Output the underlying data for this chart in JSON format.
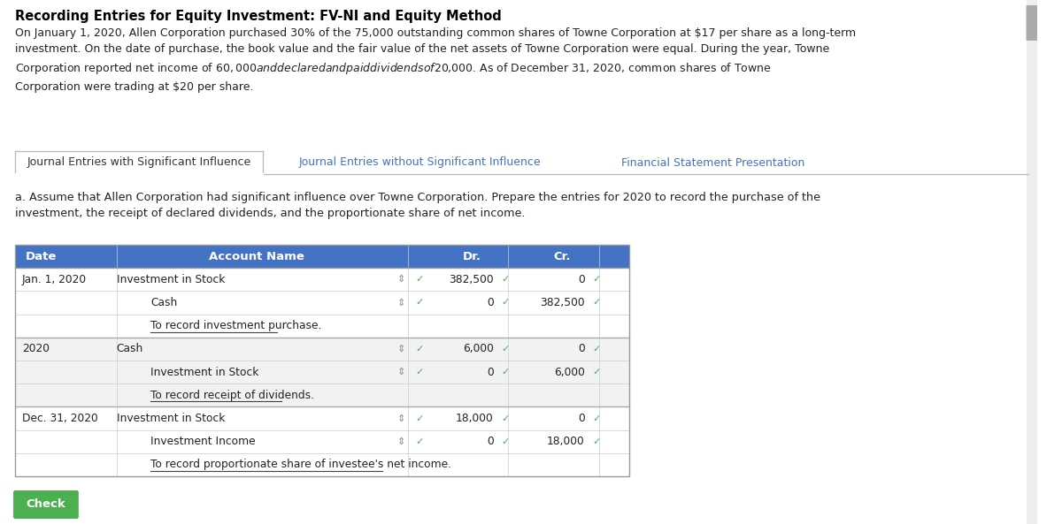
{
  "title": "Recording Entries for Equity Investment: FV-NI and Equity Method",
  "description": "On January 1, 2020, Allen Corporation purchased 30% of the 75,000 outstanding common shares of Towne Corporation at $17 per share as a long-term\ninvestment. On the date of purchase, the book value and the fair value of the net assets of Towne Corporation were equal. During the year, Towne\nCorporation reported net income of $60,000 and declared and paid dividends of $20,000. As of December 31, 2020, common shares of Towne\nCorporation were trading at $20 per share.",
  "tabs": [
    {
      "label": "Journal Entries with Significant Influence",
      "active": true
    },
    {
      "label": "Journal Entries without Significant Influence",
      "active": false
    },
    {
      "label": "Financial Statement Presentation",
      "active": false
    }
  ],
  "instruction": "a. Assume that Allen Corporation had significant influence over Towne Corporation. Prepare the entries for 2020 to record the purchase of the\ninvestment, the receipt of declared dividends, and the proportionate share of net income.",
  "table_header": [
    "Date",
    "Account Name",
    "Dr.",
    "Cr."
  ],
  "table_header_bg": "#4472c4",
  "table_header_color": "#ffffff",
  "rows": [
    {
      "date": "Jan. 1, 2020",
      "account": "Investment in Stock",
      "indent": false,
      "dr": "382,500",
      "cr": "0",
      "note": false
    },
    {
      "date": "",
      "account": "Cash",
      "indent": true,
      "dr": "0",
      "cr": "382,500",
      "note": false
    },
    {
      "date": "",
      "account": "To record investment purchase.",
      "indent": true,
      "dr": "",
      "cr": "",
      "note": true
    },
    {
      "date": "2020",
      "account": "Cash",
      "indent": false,
      "dr": "6,000",
      "cr": "0",
      "note": false
    },
    {
      "date": "",
      "account": "Investment in Stock",
      "indent": true,
      "dr": "0",
      "cr": "6,000",
      "note": false
    },
    {
      "date": "",
      "account": "To record receipt of dividends.",
      "indent": true,
      "dr": "",
      "cr": "",
      "note": true
    },
    {
      "date": "Dec. 31, 2020",
      "account": "Investment in Stock",
      "indent": false,
      "dr": "18,000",
      "cr": "0",
      "note": false
    },
    {
      "date": "",
      "account": "Investment Income",
      "indent": true,
      "dr": "0",
      "cr": "18,000",
      "note": false
    },
    {
      "date": "",
      "account": "To record proportionate share of investee's net income.",
      "indent": true,
      "dr": "",
      "cr": "",
      "note": true
    }
  ],
  "check_label": "Check",
  "check_bg": "#4caf50",
  "check_color": "#ffffff",
  "bg_color": "#ffffff",
  "border_color": "#cccccc",
  "row_bg_alt": "#f2f2f2",
  "row_bg_main": "#ffffff",
  "inactive_tab_color": "#4472c4",
  "green_check_color": "#4caf50"
}
